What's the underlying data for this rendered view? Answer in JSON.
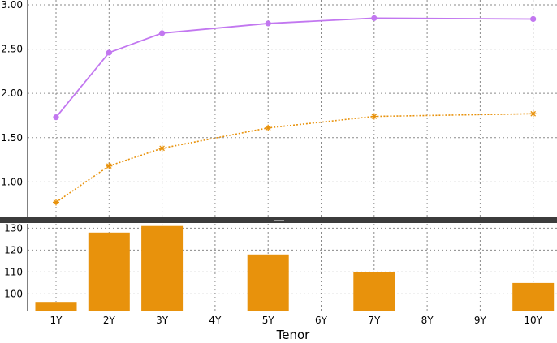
{
  "chart_data": [
    {
      "type": "line",
      "categories": [
        "1Y",
        "2Y",
        "3Y",
        "4Y",
        "5Y",
        "6Y",
        "7Y",
        "8Y",
        "9Y",
        "10Y"
      ],
      "x": [
        1,
        2,
        3,
        5,
        7,
        10
      ],
      "ylim": [
        0.6,
        3.0
      ],
      "y_ticks": [
        "1.00",
        "1.50",
        "2.00",
        "2.50",
        "3.00"
      ],
      "grid": true,
      "series": [
        {
          "values": [
            1.73,
            2.46,
            2.68,
            2.79,
            2.85,
            2.84
          ],
          "color": "#c277f0",
          "style": "solid",
          "marker": "circle"
        },
        {
          "values": [
            0.77,
            1.18,
            1.38,
            1.61,
            1.74,
            1.77
          ],
          "color": "#e8920c",
          "style": "dotted",
          "marker": "star"
        }
      ]
    },
    {
      "type": "bar",
      "categories": [
        "1Y",
        "2Y",
        "3Y",
        "4Y",
        "5Y",
        "6Y",
        "7Y",
        "8Y",
        "9Y",
        "10Y"
      ],
      "x": [
        1,
        2,
        3,
        5,
        7,
        10
      ],
      "values": [
        96,
        128,
        131,
        118,
        110,
        105
      ],
      "ylim": [
        92,
        132
      ],
      "y_ticks": [
        "100",
        "110",
        "120",
        "130"
      ],
      "xlabel": "Tenor",
      "grid": true,
      "color": "#e8920c"
    }
  ]
}
